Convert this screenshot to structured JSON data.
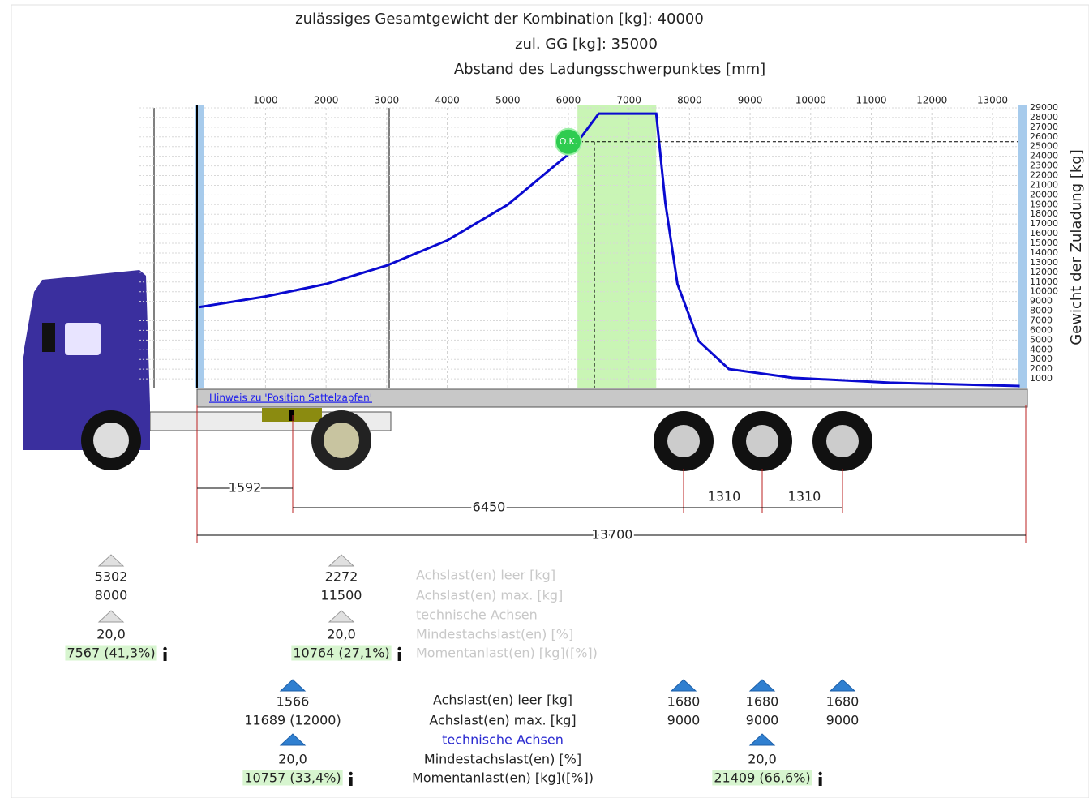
{
  "header": {
    "total_weight": "zulässiges Gesamtgewicht der Kombination [kg]:  40000",
    "gg": "zul. GG [kg]:  35000"
  },
  "chart_data": {
    "type": "line",
    "title": "Abstand des Ladungsschwerpunktes [mm]",
    "y_label": "Gewicht der Zuladung [kg]",
    "x": [
      -100,
      1000,
      2000,
      3000,
      4000,
      5000,
      6000,
      6500,
      7450,
      7600,
      7800,
      8150,
      8650,
      9700,
      11300,
      13450
    ],
    "series": [
      {
        "color": "#0a0ad0",
        "values": [
          8400,
          9500,
          10800,
          12700,
          15300,
          19000,
          24200,
          28400,
          28400,
          19200,
          10800,
          4900,
          2000,
          1100,
          600,
          250
        ]
      }
    ],
    "xlim": [
      -130,
      13550
    ],
    "ylim": [
      0,
      29000
    ],
    "xticks": [
      1000,
      2000,
      3000,
      4000,
      5000,
      6000,
      7000,
      8000,
      9000,
      10000,
      11000,
      12000,
      13000
    ],
    "yticks": [
      1000,
      2000,
      3000,
      4000,
      5000,
      6000,
      7000,
      8000,
      9000,
      10000,
      11000,
      12000,
      13000,
      14000,
      15000,
      16000,
      17000,
      18000,
      19000,
      20000,
      21000,
      22000,
      23000,
      24000,
      25000,
      26000,
      27000,
      28000,
      29000
    ],
    "grid": true,
    "permitted_range": [
      6150,
      7450
    ],
    "ok_marker": {
      "label": "O.K.",
      "x": 6000,
      "y": 25500
    },
    "load_point": {
      "x": 6430,
      "y": 25500
    }
  },
  "hint_link": "Hinweis zu 'Position Sattelzapfen'",
  "dimensions": [
    "1592",
    "6450",
    "1310",
    "1310",
    "13700"
  ],
  "tractor_axles": [
    {
      "empty": "5302",
      "max": "8000",
      "min_pct": "20,0",
      "moment": "7567 (41,3%)"
    },
    {
      "empty": "2272",
      "max": "11500",
      "min_pct": "20,0",
      "moment": "10764 (27,1%)"
    }
  ],
  "tractor_legend": [
    "Achslast(en) leer [kg]",
    "Achslast(en) max. [kg]",
    "technische Achsen",
    "Mindestachslast(en) [%]",
    "Momentanlast(en) [kg]([%])"
  ],
  "trailer_front": {
    "empty": "1566",
    "max": "11689 (12000)",
    "min_pct": "20,0",
    "moment": "10757 (33,4%)"
  },
  "trailer_axles": [
    {
      "empty": "1680",
      "max": "9000"
    },
    {
      "empty": "1680",
      "max": "9000"
    },
    {
      "empty": "1680",
      "max": "9000"
    }
  ],
  "trailer_group": {
    "min_pct": "20,0",
    "moment": "21409 (66,6%)"
  },
  "trailer_legend": [
    "Achslast(en) leer [kg]",
    "Achslast(en) max. [kg]",
    "technische Achsen",
    "Mindestachslast(en) [%]",
    "Momentanlast(en) [kg]([%])"
  ]
}
